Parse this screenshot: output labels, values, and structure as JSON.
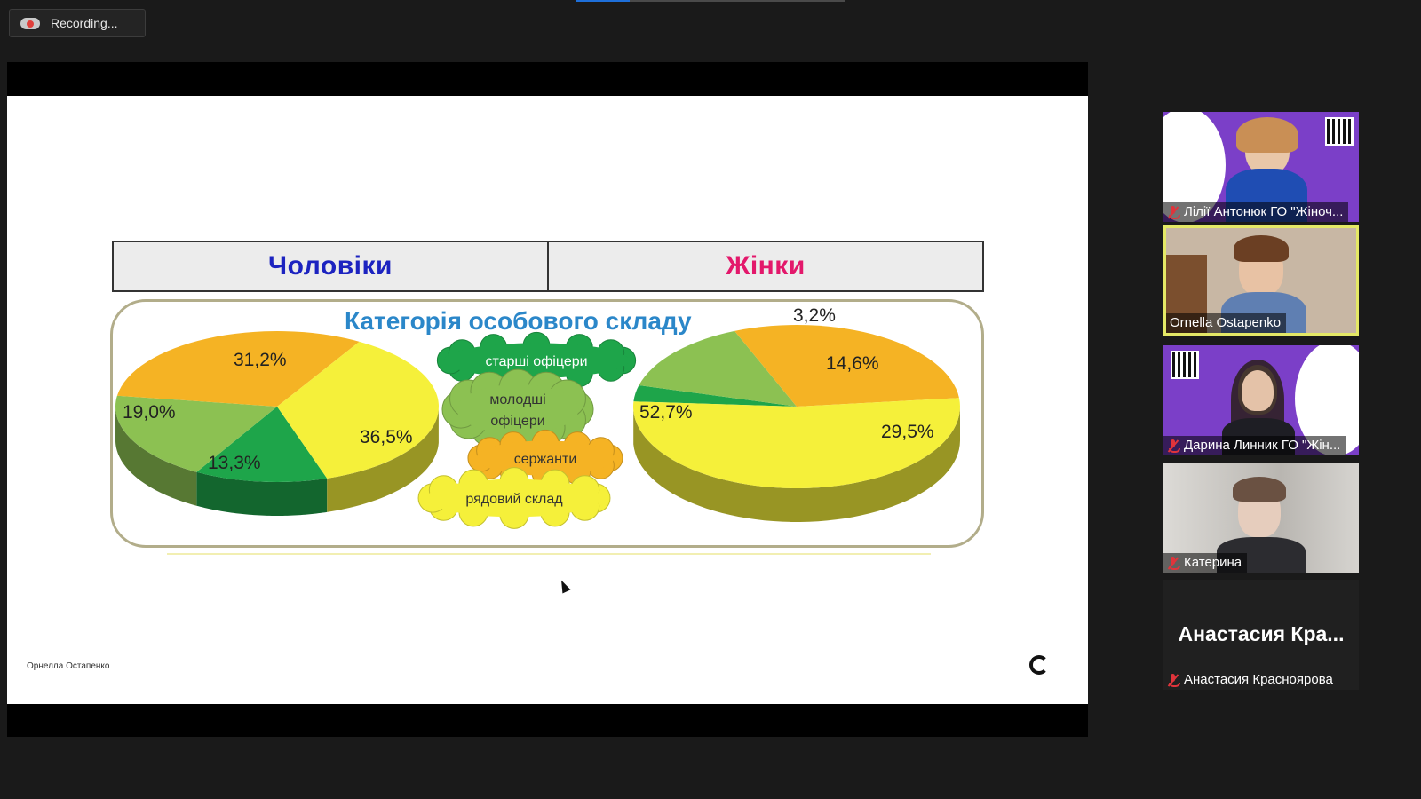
{
  "recording": {
    "label": "Recording..."
  },
  "slide": {
    "header": {
      "men": "Чоловіки",
      "women": "Жінки"
    },
    "title": "Категорія особового складу",
    "legend": [
      "старші офіцери",
      "молодші офіцери",
      "сержанти",
      "рядовий склад"
    ],
    "footer": "Орнелла Остапенко"
  },
  "chart_data": [
    {
      "type": "pie",
      "title": "Чоловіки",
      "categories": [
        "старші офіцери",
        "молодші офіцери",
        "сержанти",
        "рядовий склад"
      ],
      "values": [
        13.3,
        19.0,
        31.2,
        36.5
      ],
      "labels": [
        "13,3%",
        "19,0%",
        "31,2%",
        "36,5%"
      ],
      "colors": [
        "#1ea54a",
        "#8cc152",
        "#f5b324",
        "#f5f03a"
      ]
    },
    {
      "type": "pie",
      "title": "Жінки",
      "categories": [
        "старші офіцери",
        "молодші офіцери",
        "сержанти",
        "рядовий склад"
      ],
      "values": [
        3.2,
        14.6,
        29.5,
        52.7
      ],
      "labels": [
        "3,2%",
        "14,6%",
        "29,5%",
        "52,7%"
      ],
      "colors": [
        "#1ea54a",
        "#8cc152",
        "#f5b324",
        "#f5f03a"
      ]
    }
  ],
  "participants": [
    {
      "name": "Лілії Антонюк ГО \"Жіноч...",
      "muted": true,
      "active": false,
      "video": true
    },
    {
      "name": "Ornella Ostapenko",
      "muted": false,
      "active": true,
      "video": true
    },
    {
      "name": "Дарина Линник ГО \"Жін...",
      "muted": true,
      "active": false,
      "video": true
    },
    {
      "name": "Катерина",
      "muted": true,
      "active": false,
      "video": true
    },
    {
      "name": "Анастасия Красноярова",
      "display_name": "Анастасия Кра...",
      "muted": true,
      "active": false,
      "video": false
    }
  ]
}
